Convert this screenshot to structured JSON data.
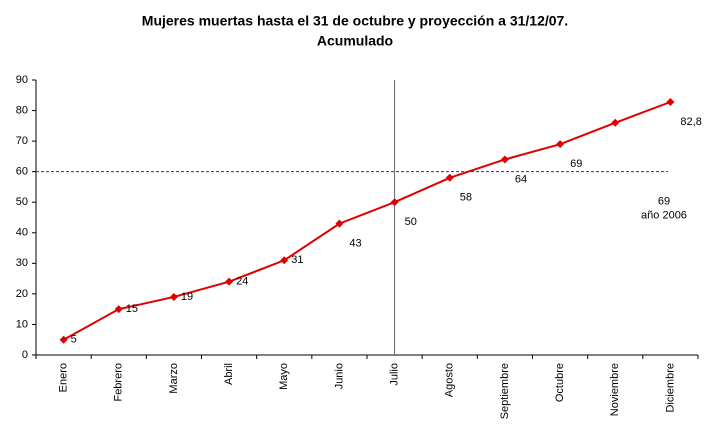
{
  "chart_data": {
    "type": "line",
    "title": "Mujeres muertas hasta el 31 de octubre y proyección a 31/12/07.",
    "subtitle": "Acumulado",
    "categories": [
      "Enero",
      "Febrero",
      "Marzo",
      "Abril",
      "Mayo",
      "Junio",
      "Julio",
      "Agosto",
      "Septiembre",
      "Octubre",
      "Noviembre",
      "Diciembre"
    ],
    "series": [
      {
        "name": "Acumulado",
        "color": "#e00000",
        "values": [
          5,
          15,
          19,
          24,
          31,
          43,
          50,
          58,
          64,
          69,
          76,
          82.8
        ],
        "value_labels": [
          "5",
          "15",
          "19",
          "24",
          "31",
          "43",
          "50",
          "58",
          "64",
          "69",
          null,
          "82,8"
        ]
      }
    ],
    "ylim": [
      0,
      90
    ],
    "yticks": [
      0,
      10,
      20,
      30,
      40,
      50,
      60,
      70,
      80,
      90
    ],
    "reference_line": {
      "value": 60,
      "color": "#1f3f8f",
      "label": [
        "69",
        "año 2006"
      ]
    },
    "vertical_line": "Julio",
    "grid": false,
    "legend": false
  }
}
